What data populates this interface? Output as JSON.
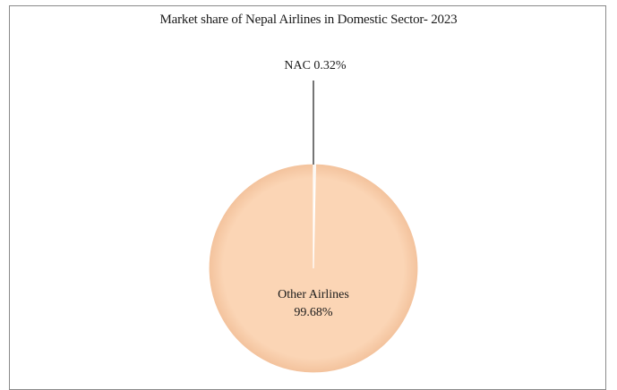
{
  "chart_data": {
    "type": "pie",
    "title": "Market share of Nepal Airlines in Domestic Sector- 2023",
    "slices": [
      {
        "label": "NAC",
        "value": 0.32,
        "display": "NAC 0.32%",
        "color": "#f5f0e6"
      },
      {
        "label": "Other Airlines",
        "value": 99.68,
        "display_name": "Other Airlines",
        "display_value": "99.68%",
        "color": "#fbd5b5"
      }
    ],
    "legend": "none",
    "grid": false
  }
}
